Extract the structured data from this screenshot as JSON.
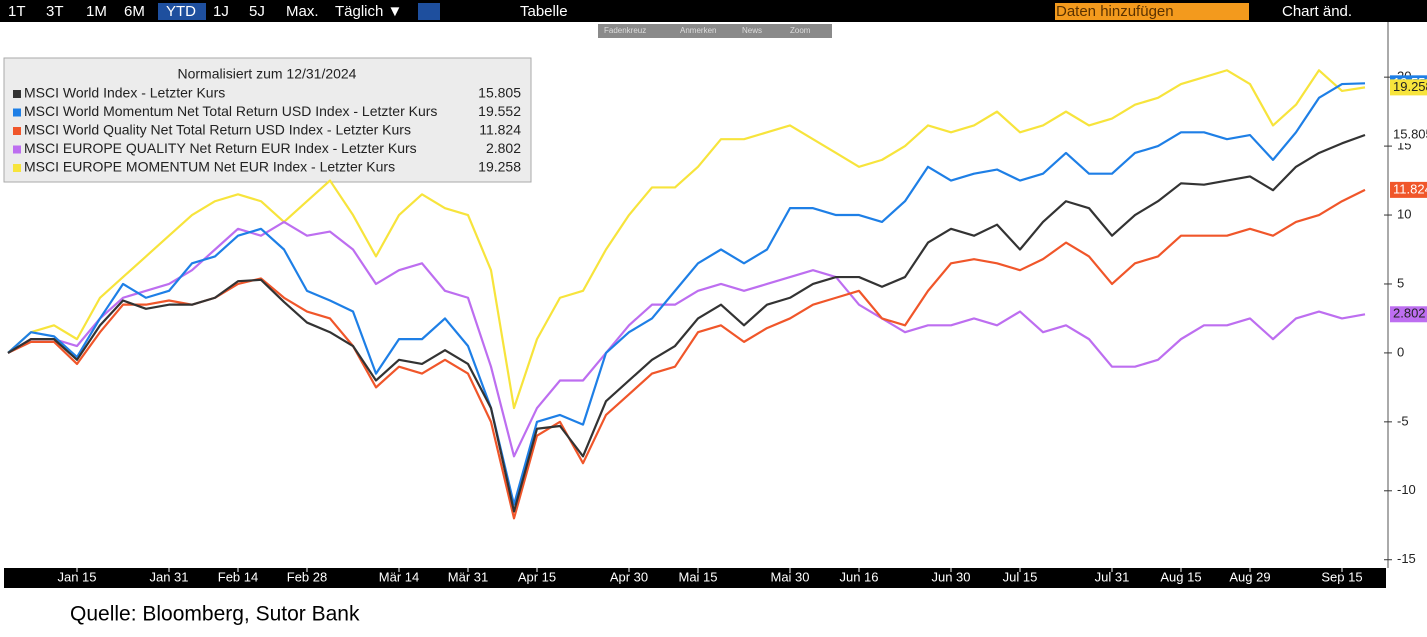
{
  "toolbar": {
    "buttons": [
      "1T",
      "3T",
      "1M",
      "6M",
      "YTD",
      "1J",
      "5J",
      "Max.",
      "Täglich ▼"
    ],
    "table": "Tabelle",
    "add_data": "Daten hinzufügen",
    "chart_edit": "Chart änd.",
    "tools": [
      "Fadenkreuz",
      "Anmerken",
      "News",
      "Zoom"
    ]
  },
  "chart_data": {
    "type": "line",
    "legend_title": "Normalisiert zum 12/31/2024",
    "categories": [
      null,
      null,
      null,
      "Jan 15",
      null,
      null,
      null,
      "Jan 31",
      null,
      null,
      "Feb 14",
      null,
      null,
      "Feb 28",
      null,
      null,
      null,
      "Mär 14",
      null,
      null,
      "Mär 31",
      null,
      null,
      "Apr 15",
      null,
      null,
      null,
      "Apr 30",
      null,
      null,
      "Mai 15",
      null,
      null,
      null,
      "Mai 30",
      null,
      null,
      "Jun 16",
      null,
      null,
      null,
      "Jun 30",
      null,
      null,
      "Jul 15",
      null,
      null,
      null,
      "Jul 31",
      null,
      null,
      "Aug 15",
      null,
      null,
      "Aug 29",
      null,
      null,
      null,
      "Sep 15",
      null
    ],
    "series": [
      {
        "name": "MSCI World Index - Letzter Kurs",
        "color": "#333333",
        "values": [
          0,
          1,
          1,
          -0.5,
          2,
          3.8,
          3.2,
          3.5,
          3.5,
          4,
          5.2,
          5.3,
          3.7,
          2.2,
          1.5,
          0.5,
          -2,
          -0.5,
          -0.8,
          0.2,
          -0.8,
          -4,
          -11.5,
          -5.5,
          -5.3,
          -7.5,
          -3.5,
          -2,
          -0.5,
          0.5,
          2.5,
          3.5,
          2,
          3.5,
          4,
          5,
          5.5,
          5.5,
          4.8,
          5.5,
          8,
          9,
          8.5,
          9.3,
          7.5,
          9.5,
          11,
          10.5,
          8.5,
          10,
          11,
          12.3,
          12.2,
          12.5,
          12.8,
          11.8,
          13.5,
          14.5,
          15.2,
          15.805
        ]
      },
      {
        "name": "MSCI World Momentum Net Total Return USD Index - Letzter Kurs",
        "color": "#1e7fe6",
        "values": [
          0,
          1.5,
          1.2,
          -0.3,
          2.5,
          5,
          4,
          4.5,
          6.5,
          7,
          8.5,
          9,
          7.5,
          4.5,
          3.8,
          3,
          -1.5,
          1,
          1,
          2.5,
          0.5,
          -4,
          -11,
          -5,
          -4.5,
          -5.2,
          0,
          1.5,
          2.5,
          4.5,
          6.5,
          7.5,
          6.5,
          7.5,
          10.5,
          10.5,
          10,
          10,
          9.5,
          11,
          13.5,
          12.5,
          13,
          13.3,
          12.5,
          13,
          14.5,
          13,
          13,
          14.5,
          15,
          16,
          16,
          15.5,
          15.8,
          14,
          16,
          18.5,
          19.5,
          19.552
        ]
      },
      {
        "name": "MSCI World Quality Net Total Return USD Index - Letzter Kurs",
        "color": "#f0562a",
        "values": [
          0,
          0.8,
          0.8,
          -0.8,
          1.5,
          3.5,
          3.5,
          3.8,
          3.5,
          4,
          5,
          5.4,
          4,
          3,
          2.5,
          0.5,
          -2.5,
          -1,
          -1.5,
          -0.5,
          -1.5,
          -5,
          -12,
          -6,
          -5,
          -8,
          -4.5,
          -3,
          -1.5,
          -1,
          1.5,
          2,
          0.8,
          1.8,
          2.5,
          3.5,
          4,
          4.5,
          2.5,
          2,
          4.5,
          6.5,
          6.8,
          6.5,
          6,
          6.8,
          8,
          7,
          5,
          6.5,
          7,
          8.5,
          8.5,
          8.5,
          9,
          8.5,
          9.5,
          10,
          11,
          11.824
        ]
      },
      {
        "name": "MSCI EUROPE QUALITY Net Return EUR Index - Letzter Kurs",
        "color": "#bd6ef0",
        "values": [
          0,
          1,
          1,
          0.5,
          2.5,
          4,
          4.5,
          5,
          6,
          7.5,
          9,
          8.5,
          9.5,
          8.5,
          8.8,
          7.5,
          5,
          6,
          6.5,
          4.5,
          4,
          -1,
          -7.5,
          -4,
          -2,
          -2,
          0,
          2,
          3.5,
          3.5,
          4.5,
          5,
          4.5,
          5,
          5.5,
          6,
          5.5,
          3.5,
          2.5,
          1.5,
          2,
          2,
          2.5,
          2,
          3,
          1.5,
          2,
          1,
          -1,
          -1,
          -0.5,
          1,
          2,
          2,
          2.5,
          1,
          2.5,
          3,
          2.5,
          2.802
        ]
      },
      {
        "name": "MSCI EUROPE MOMENTUM Net EUR Index - Letzter Kurs",
        "color": "#f7e43c",
        "values": [
          0,
          1.5,
          2,
          1,
          4,
          5.5,
          7,
          8.5,
          10,
          11,
          11.5,
          11,
          9.5,
          11,
          12.5,
          10,
          7,
          10,
          11.5,
          10.5,
          10,
          6,
          -4,
          1,
          4,
          4.5,
          7.5,
          10,
          12,
          12,
          13.5,
          15.5,
          15.5,
          16,
          16.5,
          15.5,
          14.5,
          13.5,
          14,
          15,
          16.5,
          16,
          16.5,
          17.5,
          16,
          16.5,
          17.5,
          16.5,
          17,
          18,
          18.5,
          19.5,
          20,
          20.5,
          19.5,
          16.5,
          18,
          20.5,
          19,
          19.258
        ]
      }
    ],
    "ylim": [
      -15.6,
      24
    ],
    "yticks": [
      -15,
      -10,
      -5,
      0,
      5,
      10,
      15,
      20
    ],
    "grid": false
  },
  "source": "Quelle: Bloomberg, Sutor Bank"
}
